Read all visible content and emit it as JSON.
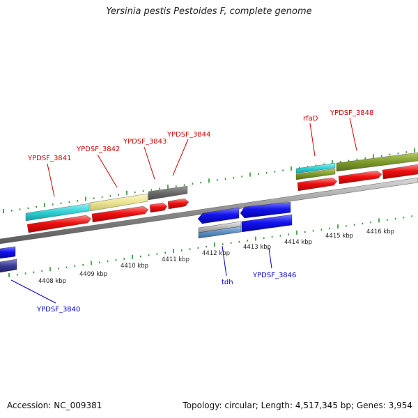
{
  "title": "Yersinia pestis Pestoides F, complete genome",
  "accession": "Accession: NC_009381",
  "summary": "Topology: circular; Length: 4,517,345 bp; Genes: 3,954",
  "colors": {
    "backbone": "#8c8c8c",
    "tick": "#2a8f2a",
    "label_forward": "#cc0000",
    "label_reverse": "#0000cc",
    "cyan": "#2fd0d4",
    "khaki": "#ece594",
    "gray": "#6a6a6a",
    "red": "#ee1111",
    "olive": "#7e9b2a",
    "blue": "#1414ee",
    "silver": "#b8b8b8",
    "steel": "#5b8fc4",
    "navy": "#3a3a99"
  },
  "scale_labels": [
    "4408 kbp",
    "4409 kbp",
    "4410 kbp",
    "4411 kbp",
    "4412 kbp",
    "4413 kbp",
    "4414 kbp",
    "4415 kbp",
    "4416 kbp"
  ],
  "genes_top": [
    "YPDSF_3841",
    "YPDSF_3842",
    "YPDSF_3843",
    "YPDSF_3844",
    "rfaD",
    "YPDSF_3848"
  ],
  "genes_bottom": [
    "YPDSF_3840",
    "tdh",
    "YPDSF_3846"
  ]
}
